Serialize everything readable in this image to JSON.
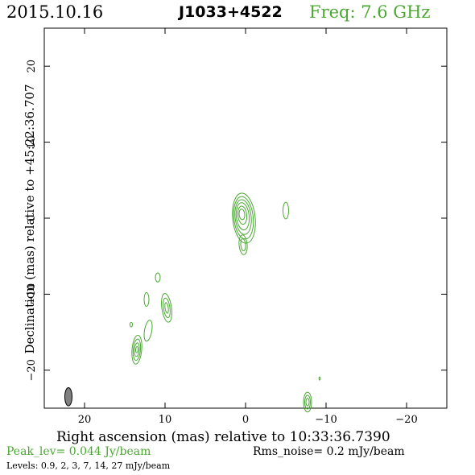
{
  "header": {
    "date": "2015.10.16",
    "source": "J1033+4522",
    "frequency": "Freq: 7.6 GHz"
  },
  "footer": {
    "peak": "Peak_lev=  0.044 Jy/beam",
    "rms": "Rms_noise=   0.2 mJy/beam",
    "levels": "Levels: 0.9,    2,    3,    7,   14,   27 mJy/beam"
  },
  "colors": {
    "contour": "#4aa832",
    "beam": "#808080",
    "axis": "#000000"
  },
  "chart_data": {
    "type": "contour",
    "xlabel": "Right ascension (mas) relative to 10:33:36.7390",
    "ylabel": "Declination (mas) relative to +45:22:36.707",
    "xlim": [
      25,
      -25
    ],
    "ylim": [
      -25,
      25
    ],
    "xticks": [
      20,
      10,
      0,
      -10,
      -20
    ],
    "yticks": [
      20,
      10,
      0,
      -10,
      -20
    ],
    "xtick_labels": [
      "20",
      "10",
      "0",
      "−10",
      "−20"
    ],
    "ytick_labels": [
      "20",
      "10",
      "0",
      "−10",
      "−20"
    ],
    "levels_mJy_per_beam": [
      0.9,
      2,
      3,
      7,
      14,
      27
    ],
    "peak_Jy_per_beam": 0.044,
    "rms_mJy_per_beam": 0.2,
    "beam": {
      "x": 22,
      "y": -23.5,
      "major": 2.4,
      "minor": 0.9,
      "pa_deg": 0
    },
    "components": [
      {
        "x": 0.2,
        "y": -0.3,
        "rings": [
          {
            "rx": 1.4,
            "ry": 3.3,
            "dx": 0,
            "dy": 0.3,
            "rot": -6
          },
          {
            "rx": 1.2,
            "ry": 2.8,
            "dx": 0.05,
            "dy": 0.35,
            "rot": -6
          },
          {
            "rx": 1.0,
            "ry": 2.3,
            "dx": 0.1,
            "dy": 0.45,
            "rot": -6
          },
          {
            "rx": 0.8,
            "ry": 1.8,
            "dx": 0.15,
            "dy": 0.55,
            "rot": -6
          },
          {
            "rx": 0.55,
            "ry": 1.2,
            "dx": 0.2,
            "dy": 0.7,
            "rot": -6
          },
          {
            "rx": 0.35,
            "ry": 0.7,
            "dx": 0.25,
            "dy": 0.8,
            "rot": -6
          }
        ]
      },
      {
        "x": 0.3,
        "y": -3.5,
        "rings": [
          {
            "rx": 0.5,
            "ry": 1.3,
            "dx": 0,
            "dy": 0,
            "rot": -5
          },
          {
            "rx": 0.3,
            "ry": 0.8,
            "dx": 0,
            "dy": 0,
            "rot": -5
          }
        ]
      },
      {
        "x": -5.0,
        "y": 1.0,
        "rings": [
          {
            "rx": 0.35,
            "ry": 1.1,
            "dx": 0,
            "dy": 0,
            "rot": 0
          }
        ]
      },
      {
        "x": 10.9,
        "y": -7.8,
        "rings": [
          {
            "rx": 0.3,
            "ry": 0.6,
            "dx": 0,
            "dy": 0,
            "rot": 0
          }
        ]
      },
      {
        "x": 9.8,
        "y": -11.8,
        "rings": [
          {
            "rx": 0.6,
            "ry": 1.9,
            "dx": 0,
            "dy": 0,
            "rot": -8
          },
          {
            "rx": 0.4,
            "ry": 1.3,
            "dx": 0,
            "dy": 0,
            "rot": -8
          },
          {
            "rx": 0.2,
            "ry": 0.7,
            "dx": 0,
            "dy": 0,
            "rot": -8
          }
        ]
      },
      {
        "x": 12.3,
        "y": -10.7,
        "rings": [
          {
            "rx": 0.3,
            "ry": 0.9,
            "dx": 0,
            "dy": 0,
            "rot": 0
          }
        ]
      },
      {
        "x": 12.1,
        "y": -14.8,
        "rings": [
          {
            "rx": 0.45,
            "ry": 1.4,
            "dx": 0,
            "dy": 0,
            "rot": 10
          }
        ]
      },
      {
        "x": 14.2,
        "y": -14.0,
        "rings": [
          {
            "rx": 0.15,
            "ry": 0.3,
            "dx": 0,
            "dy": 0,
            "rot": 0
          }
        ]
      },
      {
        "x": 13.5,
        "y": -17.3,
        "rings": [
          {
            "rx": 0.6,
            "ry": 1.9,
            "dx": 0,
            "dy": 0,
            "rot": 5
          },
          {
            "rx": 0.45,
            "ry": 1.4,
            "dx": 0,
            "dy": 0,
            "rot": 5
          },
          {
            "rx": 0.3,
            "ry": 0.9,
            "dx": 0,
            "dy": 0,
            "rot": 5
          },
          {
            "rx": 0.15,
            "ry": 0.4,
            "dx": 0,
            "dy": 0,
            "rot": 5
          }
        ]
      },
      {
        "x": -9.2,
        "y": -21.1,
        "rings": [
          {
            "rx": 0.08,
            "ry": 0.2,
            "dx": 0,
            "dy": 0,
            "rot": 0
          }
        ]
      },
      {
        "x": -7.7,
        "y": -24.2,
        "rings": [
          {
            "rx": 0.5,
            "ry": 1.3,
            "dx": 0,
            "dy": 0,
            "rot": 0
          },
          {
            "rx": 0.35,
            "ry": 0.9,
            "dx": 0,
            "dy": 0,
            "rot": 0
          },
          {
            "rx": 0.2,
            "ry": 0.5,
            "dx": 0,
            "dy": 0,
            "rot": 0
          }
        ]
      }
    ]
  }
}
